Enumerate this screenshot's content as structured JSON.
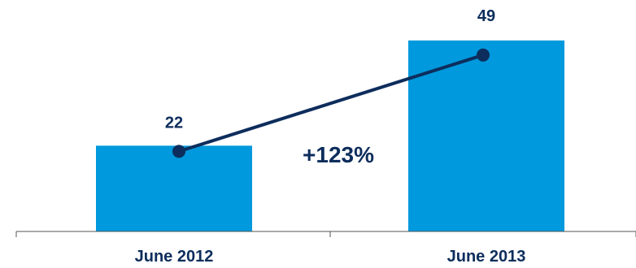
{
  "chart_data": {
    "type": "bar",
    "categories": [
      "June 2012",
      "June 2013"
    ],
    "values": [
      22,
      49
    ],
    "data_labels": [
      "22",
      "49"
    ],
    "trend_line": true,
    "change_label": "+123%",
    "title": "",
    "xlabel": "",
    "ylabel": "",
    "ylim": [
      0,
      60
    ],
    "grid": false,
    "legend": "none"
  },
  "colors": {
    "bar": "#0099DD",
    "line": "#0D2D5C",
    "text": "#0D2D5C",
    "axis": "#555555"
  }
}
